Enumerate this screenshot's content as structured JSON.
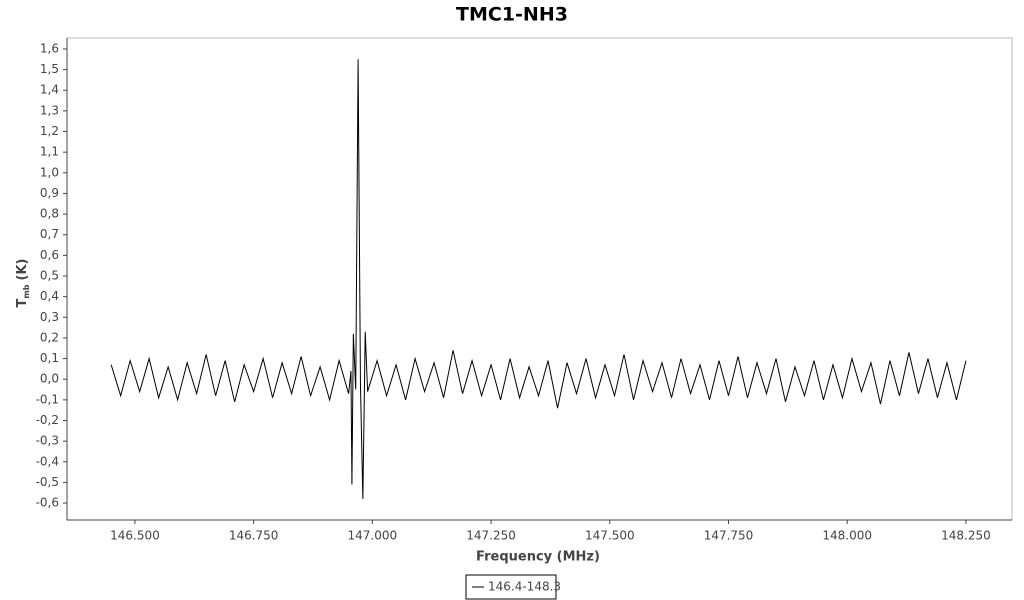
{
  "chart_data": {
    "type": "line",
    "title": "TMC1-NH3",
    "xlabel": "Frequency (MHz)",
    "ylabel": "T",
    "ylabel_sub": "mb",
    "ylabel_unit": "(K)",
    "xlim": [
      146.357,
      148.347
    ],
    "ylim": [
      -0.682,
      1.653
    ],
    "xticks": [
      {
        "value": 146.5,
        "label": "146.500"
      },
      {
        "value": 146.75,
        "label": "146.750"
      },
      {
        "value": 147,
        "label": "147.000"
      },
      {
        "value": 147.25,
        "label": "147.250"
      },
      {
        "value": 147.5,
        "label": "147.500"
      },
      {
        "value": 147.75,
        "label": "147.750"
      },
      {
        "value": 148,
        "label": "148.000"
      },
      {
        "value": 148.25,
        "label": "148.250"
      }
    ],
    "yticks": [
      {
        "value": -0.6,
        "label": "-0,6"
      },
      {
        "value": -0.5,
        "label": "-0,5"
      },
      {
        "value": -0.4,
        "label": "-0,4"
      },
      {
        "value": -0.3,
        "label": "-0,3"
      },
      {
        "value": -0.2,
        "label": "-0,2"
      },
      {
        "value": -0.1,
        "label": "-0,1"
      },
      {
        "value": 0,
        "label": "0,0"
      },
      {
        "value": 0.1,
        "label": "0,1"
      },
      {
        "value": 0.2,
        "label": "0,2"
      },
      {
        "value": 0.3,
        "label": "0,3"
      },
      {
        "value": 0.4,
        "label": "0,4"
      },
      {
        "value": 0.5,
        "label": "0,5"
      },
      {
        "value": 0.6,
        "label": "0,6"
      },
      {
        "value": 0.7,
        "label": "0,7"
      },
      {
        "value": 0.8,
        "label": "0,8"
      },
      {
        "value": 0.9,
        "label": "0,9"
      },
      {
        "value": 1.0,
        "label": "1,0"
      },
      {
        "value": 1.1,
        "label": "1,1"
      },
      {
        "value": 1.2,
        "label": "1,2"
      },
      {
        "value": 1.3,
        "label": "1,3"
      },
      {
        "value": 1.4,
        "label": "1,4"
      },
      {
        "value": 1.5,
        "label": "1,5"
      },
      {
        "value": 1.6,
        "label": "1,6"
      }
    ],
    "grid": false,
    "x": [
      146.45,
      146.47,
      146.49,
      146.51,
      146.53,
      146.55,
      146.57,
      146.59,
      146.61,
      146.63,
      146.65,
      146.67,
      146.69,
      146.71,
      146.73,
      146.75,
      146.77,
      146.79,
      146.81,
      146.83,
      146.85,
      146.87,
      146.89,
      146.91,
      146.93,
      146.95,
      146.955,
      146.957,
      146.96,
      146.965,
      146.97,
      146.975,
      146.98,
      146.985,
      146.99,
      147.01,
      147.03,
      147.05,
      147.07,
      147.09,
      147.11,
      147.13,
      147.15,
      147.17,
      147.19,
      147.21,
      147.23,
      147.25,
      147.27,
      147.29,
      147.31,
      147.33,
      147.35,
      147.37,
      147.39,
      147.41,
      147.43,
      147.45,
      147.47,
      147.49,
      147.51,
      147.53,
      147.55,
      147.57,
      147.59,
      147.61,
      147.63,
      147.65,
      147.67,
      147.69,
      147.71,
      147.73,
      147.75,
      147.77,
      147.79,
      147.81,
      147.83,
      147.85,
      147.87,
      147.89,
      147.91,
      147.93,
      147.95,
      147.97,
      147.99,
      148.01,
      148.03,
      148.05,
      148.07,
      148.09,
      148.11,
      148.13,
      148.15,
      148.17,
      148.19,
      148.21,
      148.23,
      148.25
    ],
    "series": [
      {
        "name": "146.4-148.3",
        "color": "#000000",
        "values": [
          0.07,
          -0.08,
          0.09,
          -0.06,
          0.1,
          -0.09,
          0.06,
          -0.1,
          0.08,
          -0.07,
          0.12,
          -0.08,
          0.09,
          -0.11,
          0.07,
          -0.06,
          0.1,
          -0.09,
          0.08,
          -0.07,
          0.11,
          -0.08,
          0.06,
          -0.1,
          0.09,
          -0.07,
          0.04,
          -0.51,
          0.22,
          -0.05,
          1.55,
          -0.03,
          -0.58,
          0.23,
          -0.06,
          0.09,
          -0.08,
          0.07,
          -0.1,
          0.1,
          -0.06,
          0.08,
          -0.09,
          0.14,
          -0.07,
          0.09,
          -0.08,
          0.07,
          -0.1,
          0.1,
          -0.09,
          0.06,
          -0.08,
          0.09,
          -0.14,
          0.08,
          -0.07,
          0.1,
          -0.09,
          0.07,
          -0.08,
          0.12,
          -0.1,
          0.09,
          -0.06,
          0.08,
          -0.09,
          0.1,
          -0.07,
          0.07,
          -0.1,
          0.09,
          -0.08,
          0.11,
          -0.09,
          0.08,
          -0.07,
          0.1,
          -0.11,
          0.06,
          -0.08,
          0.09,
          -0.1,
          0.07,
          -0.09,
          0.1,
          -0.06,
          0.08,
          -0.12,
          0.09,
          -0.08,
          0.13,
          -0.07,
          0.1,
          -0.09,
          0.08,
          -0.1,
          0.09
        ]
      }
    ]
  }
}
